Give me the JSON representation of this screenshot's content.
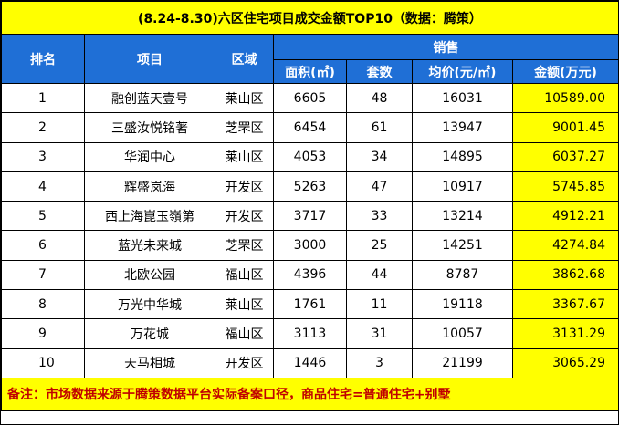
{
  "title": "(8.24-8.30)六区住宅项目成交金额TOP10（数据：腾策）",
  "headers": {
    "rank": "排名",
    "project": "项目",
    "district": "区域",
    "sales": "销售",
    "area": "面积(㎡)",
    "units": "套数",
    "avg_price": "均价(元/㎡)",
    "amount": "金额(万元)"
  },
  "rows": [
    {
      "rank": "1",
      "project": "融创蓝天壹号",
      "district": "莱山区",
      "area": "6605",
      "units": "48",
      "avg_price": "16031",
      "amount": "10589.00"
    },
    {
      "rank": "2",
      "project": "三盛汝悦铭著",
      "district": "芝罘区",
      "area": "6454",
      "units": "61",
      "avg_price": "13947",
      "amount": "9001.45"
    },
    {
      "rank": "3",
      "project": "华润中心",
      "district": "莱山区",
      "area": "4053",
      "units": "34",
      "avg_price": "14895",
      "amount": "6037.27"
    },
    {
      "rank": "4",
      "project": "辉盛岚海",
      "district": "开发区",
      "area": "5263",
      "units": "47",
      "avg_price": "10917",
      "amount": "5745.85"
    },
    {
      "rank": "5",
      "project": "西上海崑玉嶺第",
      "district": "开发区",
      "area": "3717",
      "units": "33",
      "avg_price": "13214",
      "amount": "4912.21"
    },
    {
      "rank": "6",
      "project": "蓝光未来城",
      "district": "芝罘区",
      "area": "3000",
      "units": "25",
      "avg_price": "14251",
      "amount": "4274.84"
    },
    {
      "rank": "7",
      "project": "北欧公园",
      "district": "福山区",
      "area": "4396",
      "units": "44",
      "avg_price": "8787",
      "amount": "3862.68"
    },
    {
      "rank": "8",
      "project": "万光中华城",
      "district": "莱山区",
      "area": "1761",
      "units": "11",
      "avg_price": "19118",
      "amount": "3367.67"
    },
    {
      "rank": "9",
      "project": "万花城",
      "district": "福山区",
      "area": "3113",
      "units": "31",
      "avg_price": "10057",
      "amount": "3131.29"
    },
    {
      "rank": "10",
      "project": "天马相城",
      "district": "开发区",
      "area": "1446",
      "units": "3",
      "avg_price": "21199",
      "amount": "3065.29"
    }
  ],
  "note": "备注：市场数据来源于腾策数据平台实际备案口径，商品住宅=普通住宅+别墅"
}
